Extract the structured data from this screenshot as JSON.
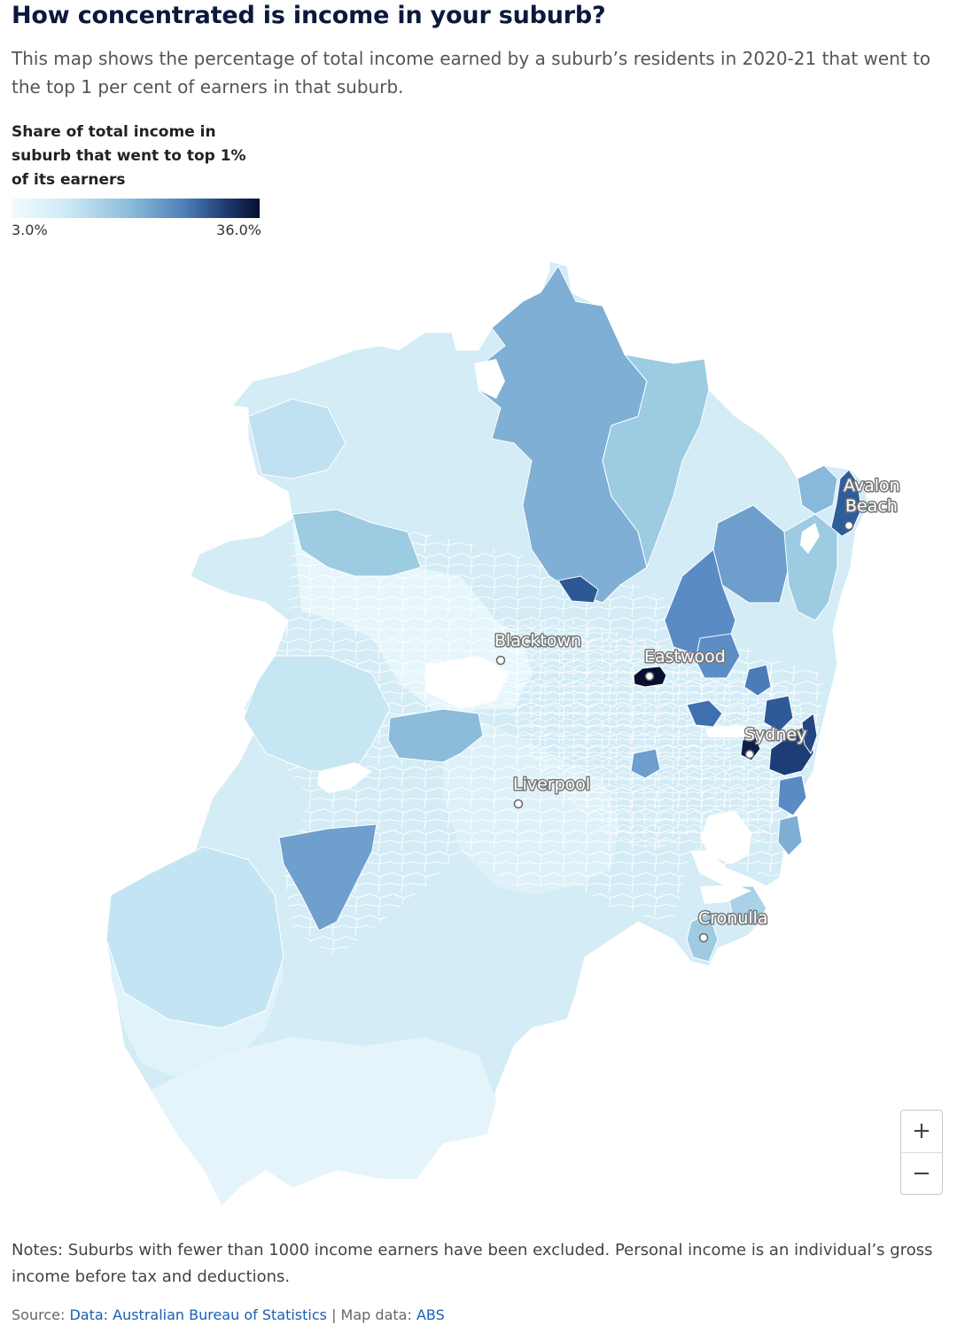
{
  "title": "How concentrated is income in your suburb?",
  "subtitle": "This map shows the percentage of total income earned by a suburb’s residents in 2020-21 that went to the top 1 per cent of earners in that suburb.",
  "legend": {
    "title": "Share of total income in suburb that went to top 1% of its earners",
    "min_label": "3.0%",
    "max_label": "36.0%",
    "min_value": 3.0,
    "max_value": 36.0,
    "colors": [
      "#f2fbfe",
      "#cdeaf5",
      "#8bbcdc",
      "#4d7fb8",
      "#1f3d74",
      "#05102e"
    ]
  },
  "map": {
    "places": {
      "avalon_line1": "Avalon",
      "avalon_line2": "Beach",
      "blacktown": "Blacktown",
      "eastwood": "Eastwood",
      "sydney": "Sydney",
      "liverpool": "Liverpool",
      "cronulla": "Cronulla"
    }
  },
  "zoom": {
    "in_label": "+",
    "out_label": "−"
  },
  "notes": "Notes: Suburbs with fewer than 1000 income earners have been excluded. Personal income is an individual’s gross income before tax and deductions.",
  "source": {
    "prefix": "Source:",
    "data_link": "Data: Australian Bureau of Statistics",
    "separator": "| Map data:",
    "map_link": "ABS"
  }
}
